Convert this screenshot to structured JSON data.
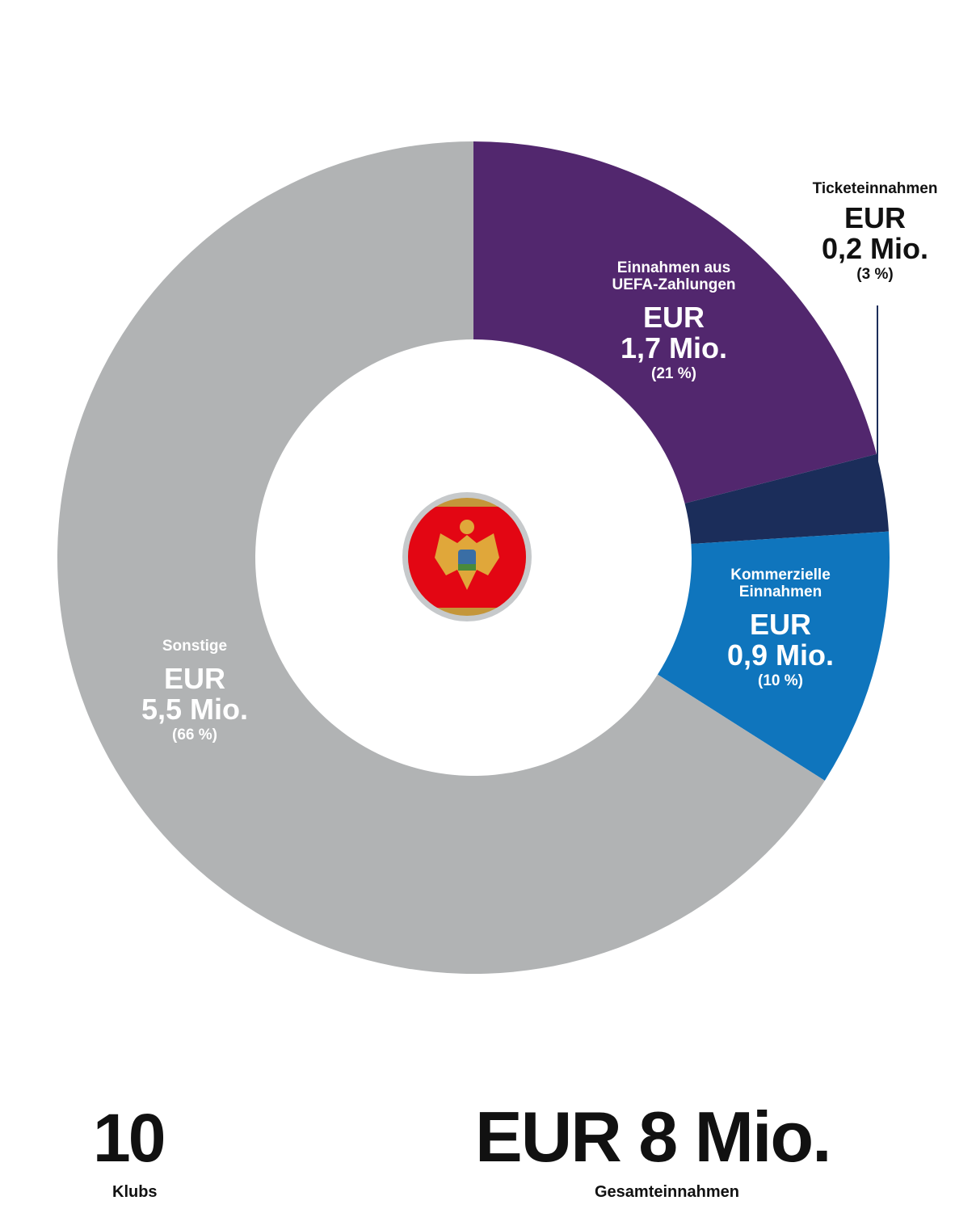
{
  "chart_data": {
    "type": "pie",
    "donut": true,
    "start": "top",
    "direction": "clockwise",
    "slices": [
      {
        "name": "Einnahmen aus UEFA-Zahlungen",
        "currency": "EUR",
        "value_label": "1,7 Mio.",
        "value": 1.7,
        "percent": 21,
        "percent_label": "(21 %)",
        "color": "#52276e"
      },
      {
        "name": "Ticketeinnahmen",
        "currency": "EUR",
        "value_label": "0,2 Mio.",
        "value": 0.2,
        "percent": 3,
        "percent_label": "(3 %)",
        "color": "#1b2d5a"
      },
      {
        "name": "Kommerzielle Einnahmen",
        "currency": "EUR",
        "value_label": "0,9 Mio.",
        "value": 0.9,
        "percent": 10,
        "percent_label": "(10 %)",
        "color": "#0f75bd"
      },
      {
        "name": "Sonstige",
        "currency": "EUR",
        "value_label": "5,5 Mio.",
        "value": 5.5,
        "percent": 66,
        "percent_label": "(66 %)",
        "color": "#b1b3b4"
      }
    ],
    "center_icon": "montenegro-flag"
  },
  "summary": {
    "clubs_value": "10",
    "clubs_label": "Klubs",
    "total_value": "EUR 8 Mio.",
    "total_label": "Gesamteinnahmen"
  }
}
